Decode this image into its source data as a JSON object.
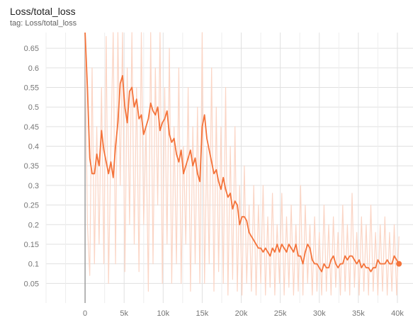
{
  "card": {
    "title": "Loss/total_loss",
    "tag": "tag: Loss/total_loss"
  },
  "colors": {
    "smoothed": "#f4733a",
    "raw": "#fbd5c5",
    "grid": "#e0e0e0",
    "zero_axis": "#9e9e9e"
  },
  "chart_data": {
    "type": "line",
    "title": "Loss/total_loss",
    "xlabel": "",
    "ylabel": "",
    "xlim": [
      -5000,
      42000
    ],
    "ylim": [
      0,
      0.69
    ],
    "grid": true,
    "x_ticks": [
      0,
      5000,
      10000,
      15000,
      20000,
      25000,
      30000,
      35000,
      40000
    ],
    "x_tick_labels": [
      "0",
      "5k",
      "10k",
      "15k",
      "20k",
      "25k",
      "30k",
      "35k",
      "40k"
    ],
    "y_ticks": [
      0.05,
      0.1,
      0.15,
      0.2,
      0.25,
      0.3,
      0.35,
      0.4,
      0.45,
      0.5,
      0.55,
      0.6,
      0.65
    ],
    "y_tick_labels": [
      "0.05",
      "0.1",
      "0.15",
      "0.2",
      "0.25",
      "0.3",
      "0.35",
      "0.4",
      "0.45",
      "0.5",
      "0.55",
      "0.6",
      "0.65"
    ],
    "series": [
      {
        "role": "smoothed",
        "x": [
          0,
          300,
          600,
          900,
          1200,
          1500,
          1800,
          2100,
          2400,
          2700,
          3000,
          3300,
          3600,
          3900,
          4200,
          4500,
          4800,
          5100,
          5400,
          5700,
          6000,
          6300,
          6600,
          6900,
          7200,
          7500,
          7800,
          8100,
          8400,
          8700,
          9000,
          9300,
          9600,
          9900,
          10200,
          10500,
          10800,
          11100,
          11400,
          11700,
          12000,
          12300,
          12600,
          12900,
          13200,
          13500,
          13800,
          14100,
          14400,
          14700,
          15000,
          15300,
          15600,
          15900,
          16200,
          16500,
          16800,
          17100,
          17400,
          17700,
          18000,
          18300,
          18600,
          18900,
          19200,
          19500,
          19800,
          20100,
          20400,
          20700,
          21000,
          21300,
          21600,
          21900,
          22200,
          22500,
          22800,
          23100,
          23400,
          23700,
          24000,
          24300,
          24600,
          24900,
          25200,
          25500,
          25800,
          26100,
          26400,
          26700,
          27000,
          27300,
          27600,
          27900,
          28200,
          28500,
          28800,
          29100,
          29400,
          29700,
          30000,
          30300,
          30600,
          30900,
          31200,
          31500,
          31800,
          32100,
          32400,
          32700,
          33000,
          33300,
          33600,
          33900,
          34200,
          34500,
          34800,
          35100,
          35400,
          35700,
          36000,
          36300,
          36600,
          36900,
          37200,
          37500,
          37800,
          38100,
          38400,
          38700,
          39000,
          39300,
          39600,
          39900,
          40200
        ],
        "y": [
          0.69,
          0.55,
          0.37,
          0.33,
          0.33,
          0.38,
          0.35,
          0.44,
          0.39,
          0.36,
          0.33,
          0.36,
          0.32,
          0.4,
          0.46,
          0.56,
          0.58,
          0.5,
          0.46,
          0.54,
          0.55,
          0.5,
          0.52,
          0.47,
          0.48,
          0.43,
          0.45,
          0.47,
          0.51,
          0.49,
          0.48,
          0.5,
          0.44,
          0.46,
          0.47,
          0.49,
          0.43,
          0.41,
          0.42,
          0.38,
          0.36,
          0.39,
          0.33,
          0.35,
          0.37,
          0.39,
          0.35,
          0.37,
          0.33,
          0.31,
          0.45,
          0.48,
          0.42,
          0.39,
          0.36,
          0.33,
          0.34,
          0.31,
          0.29,
          0.32,
          0.29,
          0.27,
          0.28,
          0.24,
          0.26,
          0.25,
          0.2,
          0.22,
          0.22,
          0.21,
          0.18,
          0.17,
          0.16,
          0.15,
          0.14,
          0.14,
          0.13,
          0.14,
          0.13,
          0.12,
          0.14,
          0.13,
          0.15,
          0.13,
          0.15,
          0.14,
          0.13,
          0.15,
          0.14,
          0.13,
          0.15,
          0.12,
          0.12,
          0.1,
          0.13,
          0.15,
          0.14,
          0.11,
          0.1,
          0.1,
          0.09,
          0.08,
          0.1,
          0.09,
          0.09,
          0.11,
          0.12,
          0.1,
          0.09,
          0.1,
          0.1,
          0.12,
          0.11,
          0.12,
          0.12,
          0.11,
          0.1,
          0.11,
          0.09,
          0.1,
          0.09,
          0.09,
          0.08,
          0.09,
          0.09,
          0.11,
          0.1,
          0.1,
          0.1,
          0.11,
          0.1,
          0.1,
          0.12,
          0.11,
          0.1
        ]
      },
      {
        "role": "raw",
        "x": [
          0,
          300,
          600,
          900,
          1200,
          1500,
          1800,
          2100,
          2400,
          2700,
          3000,
          3300,
          3600,
          3900,
          4200,
          4500,
          4800,
          5100,
          5400,
          5700,
          6000,
          6300,
          6600,
          6900,
          7200,
          7500,
          7800,
          8100,
          8400,
          8700,
          9000,
          9300,
          9600,
          9900,
          10200,
          10500,
          10800,
          11100,
          11400,
          11700,
          12000,
          12300,
          12600,
          12900,
          13200,
          13500,
          13800,
          14100,
          14400,
          14700,
          15000,
          15300,
          15600,
          15900,
          16200,
          16500,
          16800,
          17100,
          17400,
          17700,
          18000,
          18300,
          18600,
          18900,
          19200,
          19500,
          19800,
          20100,
          20400,
          20700,
          21000,
          21300,
          21600,
          21900,
          22200,
          22500,
          22800,
          23100,
          23400,
          23700,
          24000,
          24300,
          24600,
          24900,
          25200,
          25500,
          25800,
          26100,
          26400,
          26700,
          27000,
          27300,
          27600,
          27900,
          28200,
          28500,
          28800,
          29100,
          29400,
          29700,
          30000,
          30300,
          30600,
          30900,
          31200,
          31500,
          31800,
          32100,
          32400,
          32700,
          33000,
          33300,
          33600,
          33900,
          34200,
          34500,
          34800,
          35100,
          35400,
          35700,
          36000,
          36300,
          36600,
          36900,
          37200,
          37500,
          37800,
          38100,
          38400,
          38700,
          39000,
          39300,
          39600,
          39900,
          40200
        ],
        "y": [
          0.69,
          0.2,
          0.07,
          0.6,
          0.1,
          0.45,
          0.15,
          0.55,
          0.1,
          0.68,
          0.05,
          0.4,
          0.69,
          0.1,
          0.69,
          0.3,
          0.69,
          0.08,
          0.6,
          0.2,
          0.69,
          0.15,
          0.55,
          0.08,
          0.69,
          0.2,
          0.45,
          0.03,
          0.69,
          0.1,
          0.6,
          0.25,
          0.69,
          0.05,
          0.55,
          0.15,
          0.65,
          0.05,
          0.45,
          0.1,
          0.6,
          0.05,
          0.4,
          0.15,
          0.55,
          0.03,
          0.45,
          0.1,
          0.5,
          0.05,
          0.69,
          0.05,
          0.4,
          0.1,
          0.6,
          0.03,
          0.5,
          0.08,
          0.45,
          0.05,
          0.55,
          0.02,
          0.4,
          0.06,
          0.45,
          0.03,
          0.3,
          0.02,
          0.35,
          0.05,
          0.25,
          0.03,
          0.3,
          0.02,
          0.25,
          0.05,
          0.3,
          0.02,
          0.22,
          0.04,
          0.28,
          0.02,
          0.2,
          0.05,
          0.28,
          0.02,
          0.22,
          0.04,
          0.25,
          0.02,
          0.2,
          0.03,
          0.3,
          0.02,
          0.25,
          0.05,
          0.2,
          0.02,
          0.22,
          0.03,
          0.18,
          0.02,
          0.25,
          0.03,
          0.2,
          0.02,
          0.22,
          0.04,
          0.18,
          0.02,
          0.25,
          0.03,
          0.2,
          0.02,
          0.28,
          0.04,
          0.18,
          0.02,
          0.22,
          0.03,
          0.2,
          0.02,
          0.25,
          0.03,
          0.18,
          0.02,
          0.2,
          0.03,
          0.22,
          0.02,
          0.18,
          0.03,
          0.2,
          0.02,
          0.17
        ]
      }
    ]
  }
}
